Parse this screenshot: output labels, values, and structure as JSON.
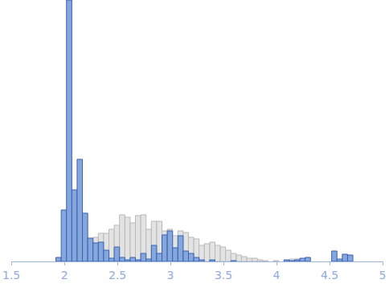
{
  "chart_data": {
    "type": "histogram",
    "bins": [
      1.92,
      1.97,
      2.02,
      2.07,
      2.12,
      2.17,
      2.22,
      2.27,
      2.32,
      2.37,
      2.42,
      2.47,
      2.52,
      2.57,
      2.62,
      2.67,
      2.72,
      2.77,
      2.82,
      2.87,
      2.92,
      2.97,
      3.02,
      3.07,
      3.12,
      3.17,
      3.22,
      3.27,
      3.32,
      3.37,
      3.42,
      3.47,
      3.52,
      3.57,
      3.62,
      3.67,
      3.72,
      3.77,
      3.82,
      3.87,
      3.92,
      3.97,
      4.02,
      4.07,
      4.12,
      4.17,
      4.22,
      4.27,
      4.32,
      4.37,
      4.42,
      4.47,
      4.52,
      4.57,
      4.62,
      4.67,
      4.72
    ],
    "series": [
      {
        "color": "#e3e3e3",
        "values": [
          0,
          0,
          5,
          8,
          10,
          18,
          22,
          30,
          35,
          35,
          40,
          45,
          58,
          55,
          48,
          57,
          58,
          40,
          50,
          50,
          38,
          40,
          32,
          38,
          36,
          30,
          28,
          20,
          22,
          24,
          20,
          18,
          14,
          10,
          8,
          6,
          4,
          4,
          2,
          1,
          0,
          1,
          0,
          0,
          3,
          3,
          0,
          0,
          0,
          0,
          0,
          0,
          0,
          0,
          0,
          0
        ]
      },
      {
        "color": "#86a6de",
        "values": [
          5,
          64,
          325,
          89,
          127,
          60,
          29,
          23,
          24,
          14,
          4,
          18,
          5,
          2,
          5,
          2,
          10,
          3,
          20,
          10,
          33,
          38,
          17,
          32,
          13,
          10,
          5,
          2,
          0,
          2,
          0,
          0,
          0,
          1,
          0,
          0,
          0,
          0,
          0,
          0,
          0,
          0,
          0,
          2,
          1,
          2,
          4,
          5,
          0,
          0,
          0,
          0,
          13,
          3,
          9,
          8
        ]
      }
    ],
    "xlim": [
      1.5,
      5
    ],
    "xticks": [
      1.5,
      2,
      2.5,
      3,
      3.5,
      4,
      4.5,
      5
    ],
    "ylim": [
      0,
      325
    ],
    "grid": false,
    "tick_labels": "x"
  }
}
